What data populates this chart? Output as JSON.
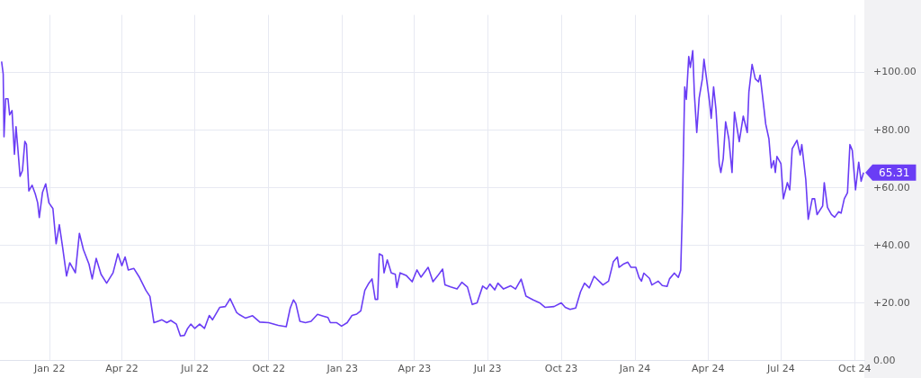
{
  "chart_data": {
    "type": "line",
    "color": "#6a3df5",
    "marker": "none",
    "line_style": "solid",
    "grid": true,
    "legend": false,
    "xlim": [
      "2021-10-31",
      "2024-10-13"
    ],
    "ylim": [
      0,
      120
    ],
    "xticks": [
      {
        "value": "2022-01-01",
        "label": "Jan 22"
      },
      {
        "value": "2022-04-01",
        "label": "Apr 22"
      },
      {
        "value": "2022-07-01",
        "label": "Jul 22"
      },
      {
        "value": "2022-10-01",
        "label": "Oct 22"
      },
      {
        "value": "2023-01-01",
        "label": "Jan 23"
      },
      {
        "value": "2023-04-01",
        "label": "Apr 23"
      },
      {
        "value": "2023-07-01",
        "label": "Jul 23"
      },
      {
        "value": "2023-10-01",
        "label": "Oct 23"
      },
      {
        "value": "2024-01-01",
        "label": "Jan 24"
      },
      {
        "value": "2024-04-01",
        "label": "Apr 24"
      },
      {
        "value": "2024-07-01",
        "label": "Jul 24"
      },
      {
        "value": "2024-10-01",
        "label": "Oct 24"
      }
    ],
    "yticks": [
      {
        "value": 0,
        "label": "0.00"
      },
      {
        "value": 20,
        "label": "+20.00"
      },
      {
        "value": 40,
        "label": "+40.00"
      },
      {
        "value": 60,
        "label": "+60.00"
      },
      {
        "value": 80,
        "label": "+80.00"
      },
      {
        "value": 100,
        "label": "+100.00"
      }
    ],
    "annotations": [
      {
        "text": "65.31",
        "x": "2024-10-12",
        "y": 65.31
      }
    ],
    "x": [
      "2021-11-02",
      "2021-11-04",
      "2021-11-05",
      "2021-11-07",
      "2021-11-10",
      "2021-11-12",
      "2021-11-15",
      "2021-11-18",
      "2021-11-20",
      "2021-11-22",
      "2021-11-25",
      "2021-11-28",
      "2021-12-01",
      "2021-12-03",
      "2021-12-06",
      "2021-12-10",
      "2021-12-14",
      "2021-12-17",
      "2021-12-19",
      "2021-12-23",
      "2021-12-27",
      "2021-12-31",
      "2022-01-05",
      "2022-01-09",
      "2022-01-13",
      "2022-01-17",
      "2022-01-22",
      "2022-01-26",
      "2022-02-02",
      "2022-02-07",
      "2022-02-12",
      "2022-02-19",
      "2022-02-23",
      "2022-02-28",
      "2022-03-06",
      "2022-03-13",
      "2022-03-21",
      "2022-03-27",
      "2022-04-01",
      "2022-04-05",
      "2022-04-09",
      "2022-04-16",
      "2022-04-23",
      "2022-05-01",
      "2022-05-06",
      "2022-05-11",
      "2022-05-16",
      "2022-05-21",
      "2022-05-27",
      "2022-06-01",
      "2022-06-08",
      "2022-06-13",
      "2022-06-18",
      "2022-06-22",
      "2022-06-26",
      "2022-07-01",
      "2022-07-07",
      "2022-07-13",
      "2022-07-19",
      "2022-07-23",
      "2022-08-01",
      "2022-08-08",
      "2022-08-14",
      "2022-08-22",
      "2022-08-25",
      "2022-09-02",
      "2022-09-11",
      "2022-09-20",
      "2022-10-01",
      "2022-10-13",
      "2022-10-23",
      "2022-10-28",
      "2022-11-01",
      "2022-11-04",
      "2022-11-09",
      "2022-11-16",
      "2022-11-23",
      "2022-12-01",
      "2022-12-08",
      "2022-12-14",
      "2022-12-17",
      "2022-12-25",
      "2022-12-31",
      "2023-01-07",
      "2023-01-13",
      "2023-01-19",
      "2023-01-24",
      "2023-01-29",
      "2023-02-03",
      "2023-02-07",
      "2023-02-11",
      "2023-02-14",
      "2023-02-16",
      "2023-02-20",
      "2023-02-22",
      "2023-02-26",
      "2023-03-03",
      "2023-03-08",
      "2023-03-10",
      "2023-03-14",
      "2023-03-22",
      "2023-03-29",
      "2023-04-04",
      "2023-04-09",
      "2023-04-18",
      "2023-04-24",
      "2023-04-30",
      "2023-05-06",
      "2023-05-09",
      "2023-05-16",
      "2023-05-24",
      "2023-05-30",
      "2023-06-06",
      "2023-06-12",
      "2023-06-18",
      "2023-06-25",
      "2023-06-30",
      "2023-07-04",
      "2023-07-10",
      "2023-07-14",
      "2023-07-21",
      "2023-07-30",
      "2023-08-05",
      "2023-08-12",
      "2023-08-18",
      "2023-08-27",
      "2023-09-04",
      "2023-09-11",
      "2023-09-22",
      "2023-10-01",
      "2023-10-06",
      "2023-10-12",
      "2023-10-19",
      "2023-10-25",
      "2023-10-30",
      "2023-11-05",
      "2023-11-11",
      "2023-11-18",
      "2023-11-22",
      "2023-11-29",
      "2023-12-05",
      "2023-12-10",
      "2023-12-12",
      "2023-12-18",
      "2023-12-23",
      "2023-12-27",
      "2024-01-02",
      "2024-01-06",
      "2024-01-09",
      "2024-01-12",
      "2024-01-19",
      "2024-01-22",
      "2024-01-30",
      "2024-02-04",
      "2024-02-10",
      "2024-02-13",
      "2024-02-19",
      "2024-02-24",
      "2024-02-27",
      "2024-02-29",
      "2024-03-02",
      "2024-03-03",
      "2024-03-05",
      "2024-03-08",
      "2024-03-10",
      "2024-03-13",
      "2024-03-15",
      "2024-03-18",
      "2024-03-21",
      "2024-03-25",
      "2024-03-27",
      "2024-03-30",
      "2024-04-03",
      "2024-04-05",
      "2024-04-08",
      "2024-04-11",
      "2024-04-15",
      "2024-04-17",
      "2024-04-20",
      "2024-04-23",
      "2024-04-27",
      "2024-05-01",
      "2024-05-04",
      "2024-05-10",
      "2024-05-15",
      "2024-05-20",
      "2024-05-22",
      "2024-05-26",
      "2024-05-30",
      "2024-06-03",
      "2024-06-05",
      "2024-06-10",
      "2024-06-12",
      "2024-06-16",
      "2024-06-19",
      "2024-06-22",
      "2024-06-24",
      "2024-06-26",
      "2024-07-01",
      "2024-07-04",
      "2024-07-09",
      "2024-07-12",
      "2024-07-15",
      "2024-07-21",
      "2024-07-25",
      "2024-07-27",
      "2024-08-01",
      "2024-08-04",
      "2024-08-09",
      "2024-08-12",
      "2024-08-15",
      "2024-08-22",
      "2024-08-24",
      "2024-08-28",
      "2024-09-02",
      "2024-09-06",
      "2024-09-11",
      "2024-09-14",
      "2024-09-18",
      "2024-09-22",
      "2024-09-25",
      "2024-09-28",
      "2024-10-02",
      "2024-10-06",
      "2024-10-09",
      "2024-10-12"
    ],
    "values": [
      103.8,
      99.5,
      77.7,
      90.9,
      90.9,
      85.3,
      86.8,
      71.6,
      81.2,
      74.6,
      64,
      66,
      76.1,
      75.1,
      58.9,
      60.9,
      57.9,
      54.8,
      49.7,
      58.4,
      61.4,
      54.8,
      52.8,
      40.6,
      47.2,
      39.6,
      29.4,
      34,
      30.5,
      44.2,
      38.6,
      33.5,
      28.4,
      35.5,
      30,
      26.9,
      30.5,
      37.1,
      33,
      36,
      31.5,
      32,
      28.9,
      24.4,
      22.3,
      13.2,
      13.7,
      14.2,
      13.2,
      14,
      12.7,
      8.6,
      8.8,
      11.2,
      12.7,
      11.2,
      12.7,
      11.2,
      15.7,
      14.2,
      18.5,
      18.8,
      21.5,
      16.8,
      16.1,
      14.8,
      15.6,
      13.4,
      13.2,
      12.3,
      11.8,
      18.3,
      21.1,
      19.8,
      13.7,
      13.2,
      13.7,
      16.1,
      15.5,
      15,
      13.2,
      13.2,
      12,
      13.2,
      15.7,
      16.2,
      17.3,
      24.4,
      26.9,
      28.4,
      21.3,
      21.3,
      37.1,
      36.5,
      30.5,
      35,
      30.5,
      30,
      25.4,
      30.5,
      29.5,
      27.4,
      31.5,
      29,
      32.4,
      27.4,
      29.5,
      31.8,
      26.3,
      25.6,
      24.9,
      27.2,
      25.6,
      19.5,
      20.1,
      25.9,
      24.9,
      26.6,
      24.6,
      26.9,
      24.9,
      26,
      24.9,
      28.3,
      22.4,
      21.1,
      20.1,
      18.5,
      18.8,
      20.1,
      18.5,
      17.8,
      18.3,
      23.9,
      26.9,
      25.3,
      29.3,
      27.4,
      26.3,
      27.6,
      34.4,
      36,
      32.4,
      33.6,
      34.2,
      32.4,
      32.4,
      28.9,
      27.6,
      30.4,
      28.6,
      26.3,
      27.6,
      26.1,
      25.8,
      28.4,
      30.4,
      28.9,
      31.4,
      51.7,
      81.1,
      95,
      90.7,
      105.6,
      101.8,
      107.6,
      92.7,
      79.2,
      91.2,
      97.8,
      104.6,
      98.3,
      89.7,
      84.1,
      95,
      87.1,
      68.4,
      65.3,
      70.1,
      82.9,
      77,
      65.3,
      86.3,
      76,
      84.9,
      79.2,
      93.2,
      102.8,
      97.8,
      96.8,
      99.1,
      87.1,
      82.1,
      77,
      66.9,
      69.4,
      65.3,
      70.9,
      68.4,
      56.2,
      61.8,
      59.3,
      73.5,
      76.5,
      71.4,
      75,
      62.8,
      49.1,
      56.2,
      56.2,
      50.7,
      53.7,
      61.8,
      53.2,
      50.7,
      49.8,
      51.7,
      51.2,
      56.2,
      58.3,
      75,
      73,
      59.3,
      68.9,
      62.3,
      65.31
    ]
  }
}
